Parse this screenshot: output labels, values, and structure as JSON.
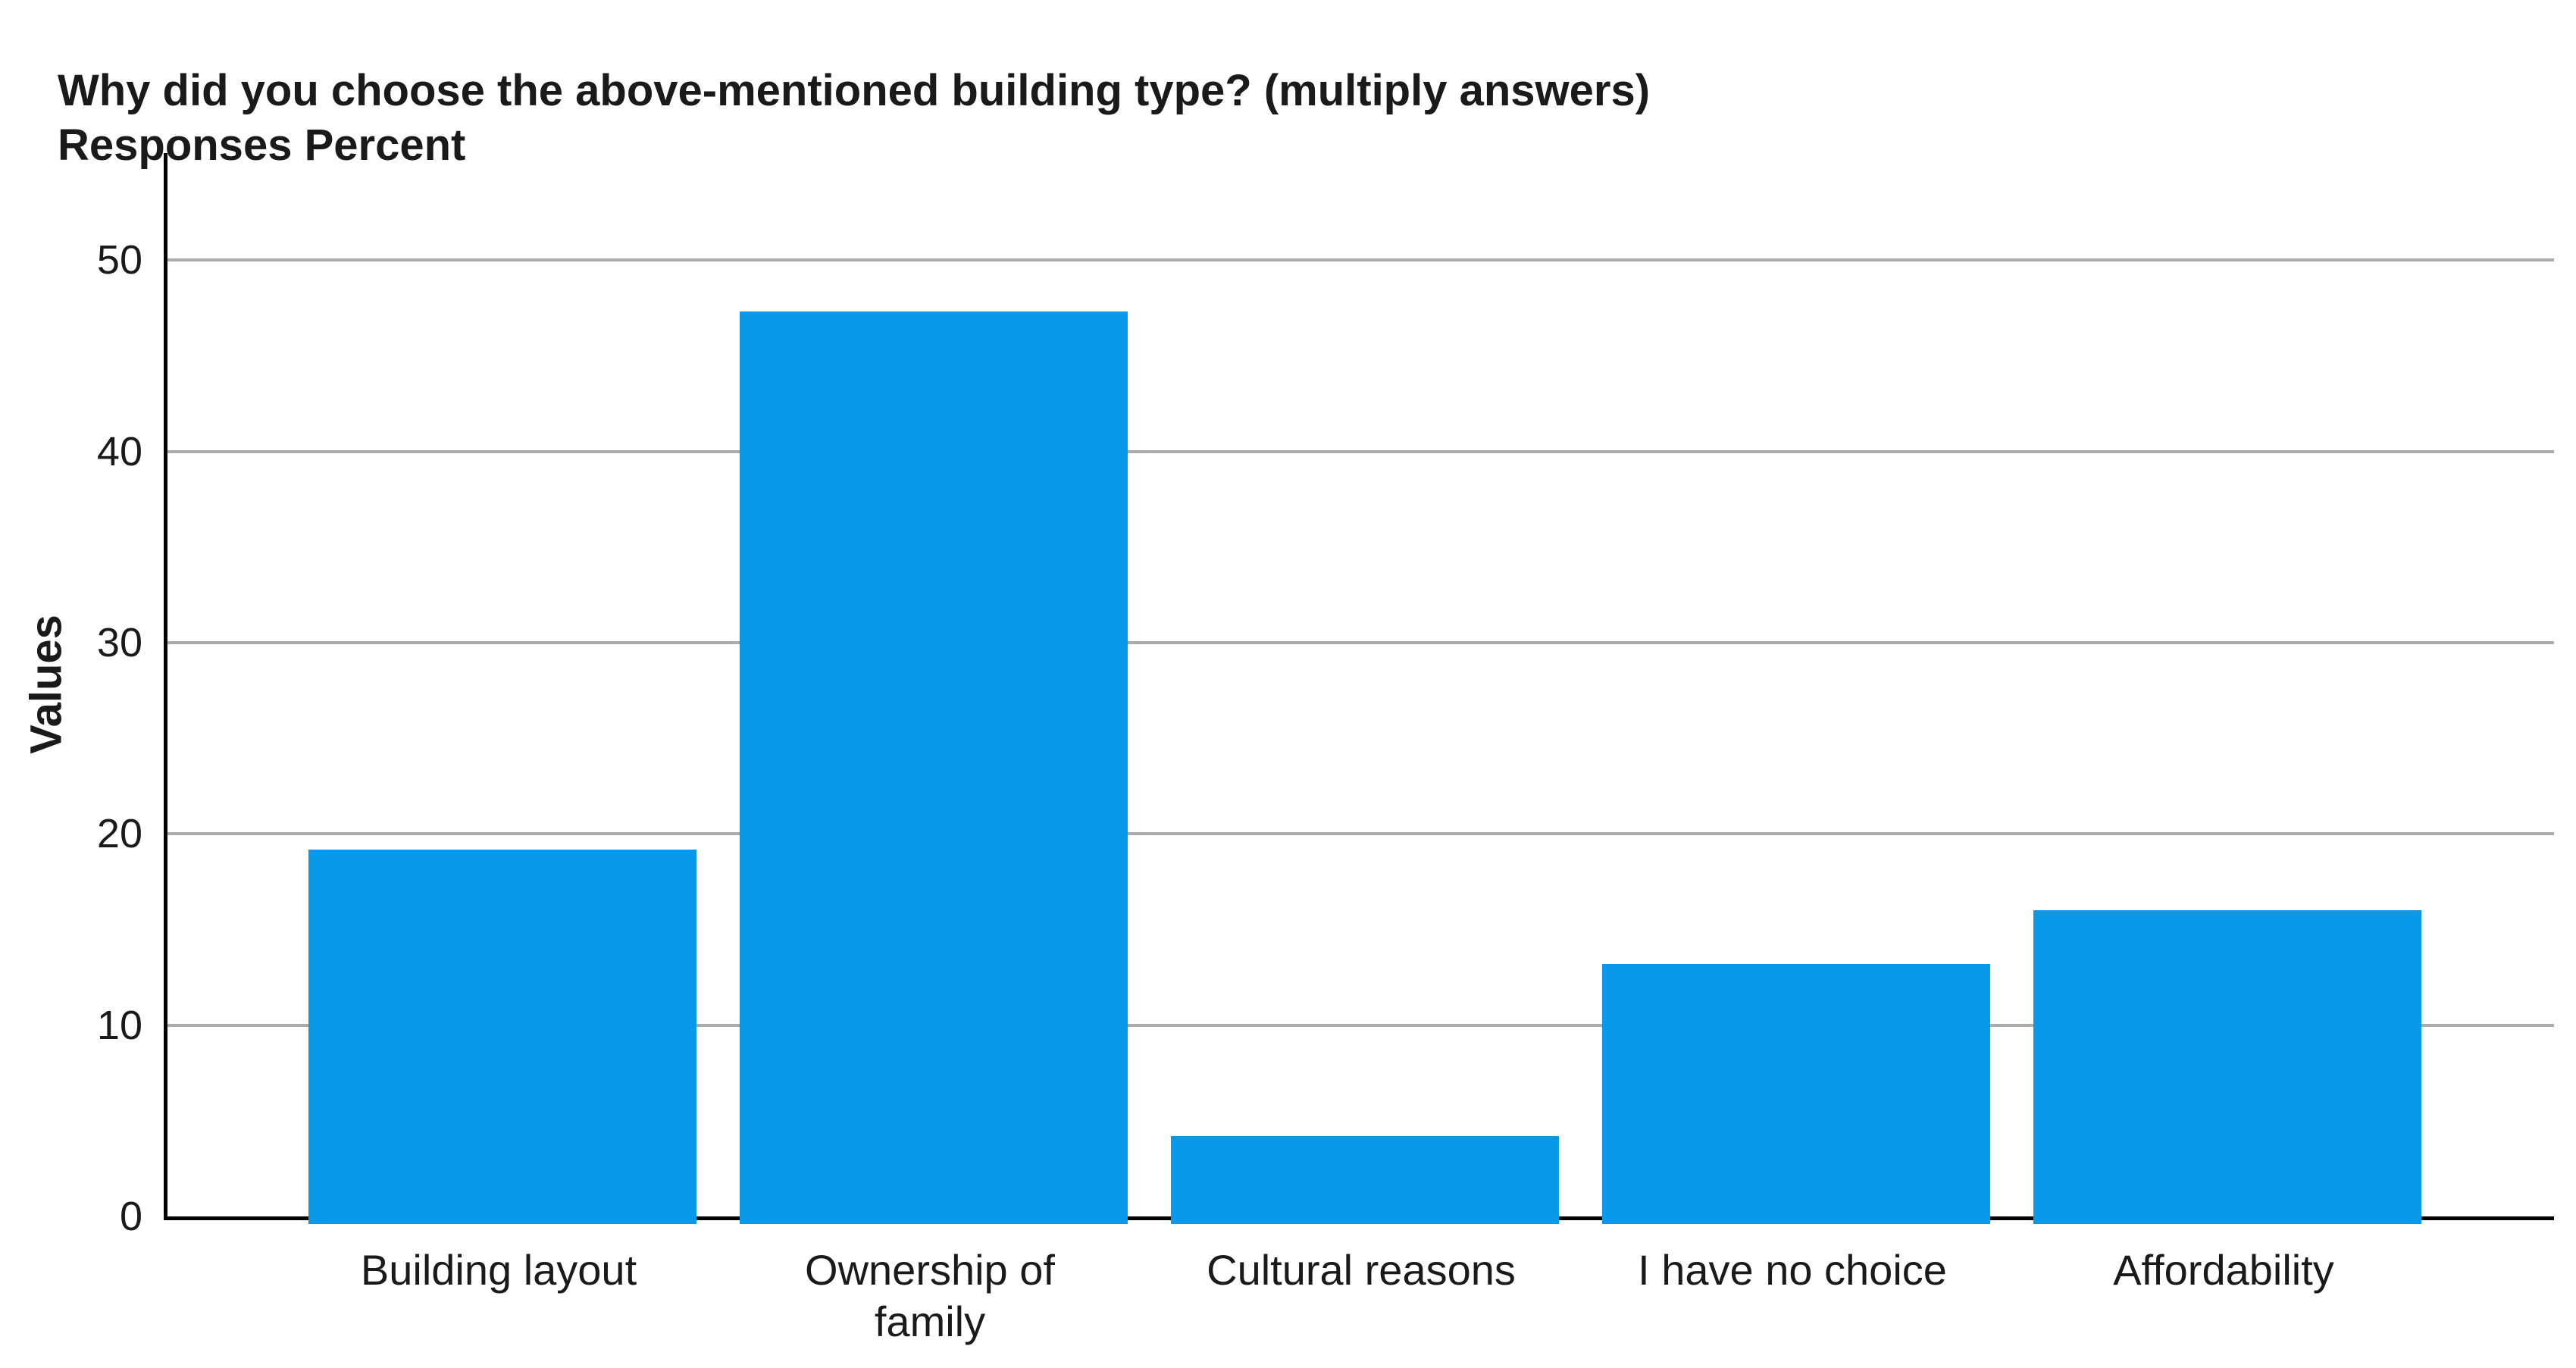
{
  "chart_data": {
    "type": "bar",
    "title": "Why did you choose the above-mentioned building type? (multiply answers)",
    "subtitle": "Responses Percent",
    "ylabel": "Values",
    "xlabel": "",
    "categories": [
      "Building layout",
      "Ownership of family",
      "Cultural reasons",
      "I have no choice",
      "Affordability"
    ],
    "values": [
      19.2,
      47.3,
      4.2,
      13.2,
      16.0
    ],
    "yticks": [
      0,
      10,
      20,
      30,
      40,
      50
    ],
    "ylim": [
      0,
      55.6
    ],
    "grid": true,
    "legend": false,
    "bar_color": "#0999e8",
    "gridline_color": "#ababab",
    "axis_color": "#000000",
    "text_color": "#1a1a1a",
    "background_color": "#ffffff"
  }
}
